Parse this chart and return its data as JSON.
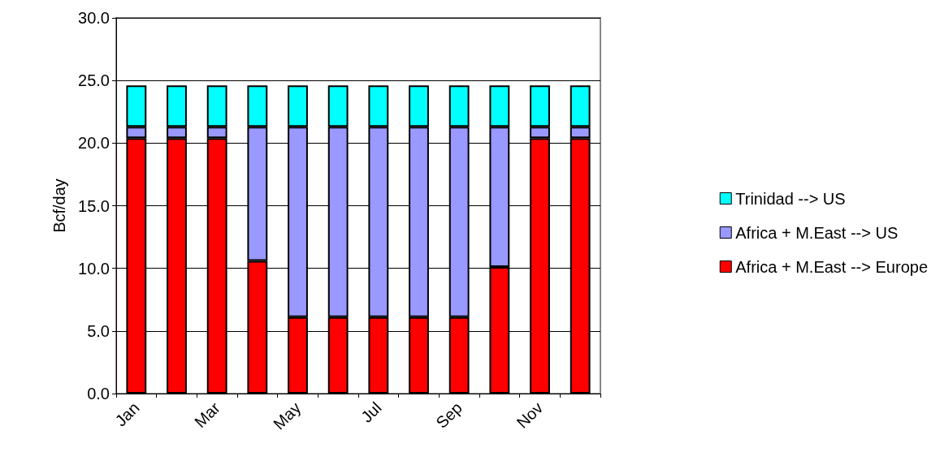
{
  "chart_data": {
    "type": "bar",
    "stacked": true,
    "ylabel": "Bcf/day",
    "categories": [
      "Jan",
      null,
      "Mar",
      null,
      "May",
      null,
      "Jul",
      null,
      "Sep",
      null,
      "Nov",
      null
    ],
    "series": [
      {
        "name": "Africa + M.East --> Europe",
        "color": "#ff0000",
        "values": [
          20.4,
          20.4,
          20.4,
          10.6,
          6.1,
          6.1,
          6.1,
          6.1,
          6.1,
          10.1,
          20.4,
          20.4
        ]
      },
      {
        "name": "Africa + M.East --> US",
        "color": "#9999ff",
        "values": [
          0.9,
          0.9,
          0.9,
          10.7,
          15.2,
          15.2,
          15.2,
          15.2,
          15.2,
          11.2,
          0.9,
          0.9
        ]
      },
      {
        "name": "Trinidad --> US",
        "color": "#00ffff",
        "values": [
          3.3,
          3.3,
          3.3,
          3.3,
          3.3,
          3.3,
          3.3,
          3.3,
          3.3,
          3.3,
          3.3,
          3.3
        ]
      }
    ],
    "ylim": [
      0,
      30
    ],
    "yticks": [
      {
        "value": 0,
        "label": "0.0"
      },
      {
        "value": 5,
        "label": "5.0"
      },
      {
        "value": 10,
        "label": "10.0"
      },
      {
        "value": 15,
        "label": "15.0"
      },
      {
        "value": 20,
        "label": "20.0"
      },
      {
        "value": 25,
        "label": "25.0"
      },
      {
        "value": 30,
        "label": "30.0"
      }
    ],
    "grid": "y",
    "legend": "right"
  }
}
